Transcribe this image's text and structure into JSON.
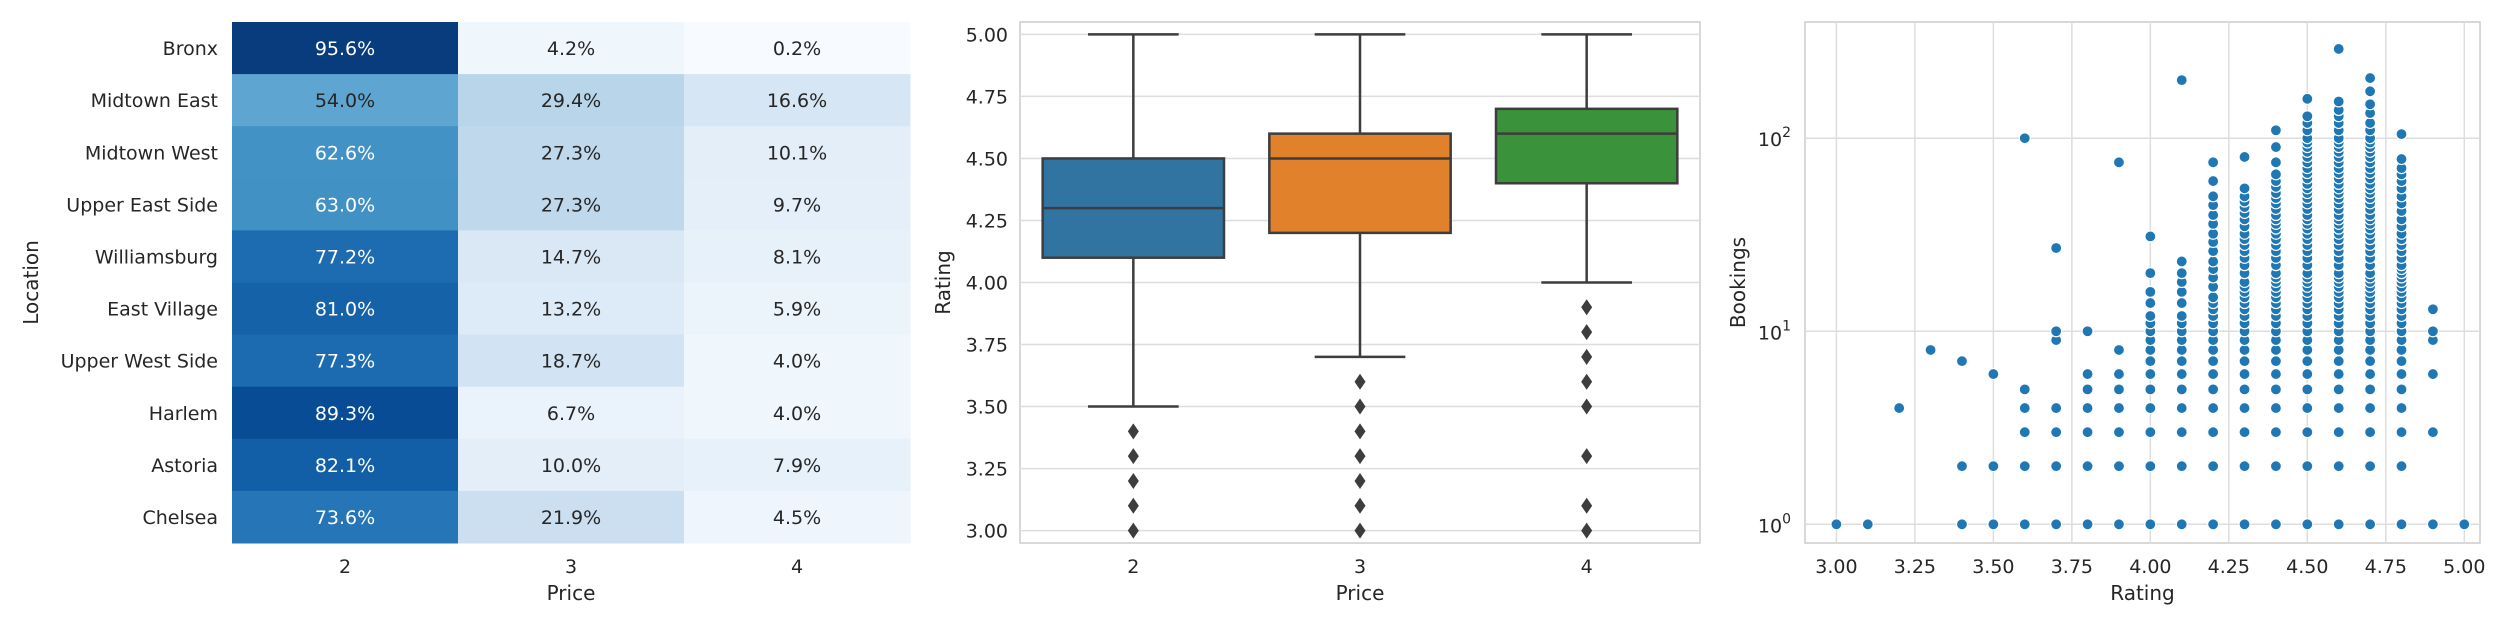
{
  "chart_data": [
    {
      "type": "heatmap",
      "xlabel": "Price",
      "ylabel": "Location",
      "columns": [
        "2",
        "3",
        "4"
      ],
      "rows": [
        "Bronx",
        "Midtown East",
        "Midtown West",
        "Upper East Side",
        "Williamsburg",
        "East Village",
        "Upper West Side",
        "Harlem",
        "Astoria",
        "Chelsea"
      ],
      "values": [
        [
          95.6,
          4.2,
          0.2
        ],
        [
          54.0,
          29.4,
          16.6
        ],
        [
          62.6,
          27.3,
          10.1
        ],
        [
          63.0,
          27.3,
          9.7
        ],
        [
          77.2,
          14.7,
          8.1
        ],
        [
          81.0,
          13.2,
          5.9
        ],
        [
          77.3,
          18.7,
          4.0
        ],
        [
          89.3,
          6.7,
          4.0
        ],
        [
          82.1,
          10.0,
          7.9
        ],
        [
          73.6,
          21.9,
          4.5
        ]
      ],
      "labels": [
        [
          "95.6%",
          "4.2%",
          "0.2%"
        ],
        [
          "54.0%",
          "29.4%",
          "16.6%"
        ],
        [
          "62.6%",
          "27.3%",
          "10.1%"
        ],
        [
          "63.0%",
          "27.3%",
          "9.7%"
        ],
        [
          "77.2%",
          "14.7%",
          "8.1%"
        ],
        [
          "81.0%",
          "13.2%",
          "5.9%"
        ],
        [
          "77.3%",
          "18.7%",
          "4.0%"
        ],
        [
          "89.3%",
          "6.7%",
          "4.0%"
        ],
        [
          "82.1%",
          "10.0%",
          "7.9%"
        ],
        [
          "73.6%",
          "21.9%",
          "4.5%"
        ]
      ],
      "colormap": "Blues",
      "vmin": 0,
      "vmax": 100,
      "colorbar": false
    },
    {
      "type": "box",
      "xlabel": "Price",
      "ylabel": "Rating",
      "ylim": [
        2.95,
        5.05
      ],
      "yticks": [
        "3.00",
        "3.25",
        "3.50",
        "3.75",
        "4.00",
        "4.25",
        "4.50",
        "4.75",
        "5.00"
      ],
      "grid": true,
      "boxes": [
        {
          "category": "2",
          "color": "#3274a1",
          "whisker_low": 3.5,
          "q1": 4.1,
          "median": 4.3,
          "q3": 4.5,
          "whisker_high": 5.0,
          "outliers": [
            3.0,
            3.1,
            3.2,
            3.3,
            3.4
          ]
        },
        {
          "category": "3",
          "color": "#e1812c",
          "whisker_low": 3.7,
          "q1": 4.2,
          "median": 4.5,
          "q3": 4.6,
          "whisker_high": 5.0,
          "outliers": [
            3.0,
            3.1,
            3.2,
            3.3,
            3.4,
            3.5,
            3.6
          ]
        },
        {
          "category": "4",
          "color": "#3a923a",
          "whisker_low": 4.0,
          "q1": 4.4,
          "median": 4.6,
          "q3": 4.7,
          "whisker_high": 5.0,
          "outliers": [
            3.0,
            3.1,
            3.3,
            3.5,
            3.6,
            3.7,
            3.8,
            3.9
          ]
        }
      ]
    },
    {
      "type": "scatter",
      "xlabel": "Rating",
      "ylabel": "Bookings",
      "xlim": [
        2.9,
        5.05
      ],
      "xticks": [
        "3.00",
        "3.25",
        "3.50",
        "3.75",
        "4.00",
        "4.25",
        "4.50",
        "4.75",
        "5.00"
      ],
      "yscale": "log",
      "ylim": [
        0.8,
        400
      ],
      "yticks": [
        {
          "value": 1,
          "base": "10",
          "exp": "0"
        },
        {
          "value": 10,
          "base": "10",
          "exp": "1"
        },
        {
          "value": 100,
          "base": "10",
          "exp": "2"
        }
      ],
      "grid": true,
      "color": "#1f77b4",
      "columns": [
        {
          "x": 3.0,
          "y": [
            1
          ]
        },
        {
          "x": 3.1,
          "y": [
            1
          ]
        },
        {
          "x": 3.2,
          "y": [
            4
          ]
        },
        {
          "x": 3.3,
          "y": [
            8
          ]
        },
        {
          "x": 3.4,
          "y": [
            1,
            2,
            7
          ]
        },
        {
          "x": 3.5,
          "y": [
            1,
            2,
            6
          ]
        },
        {
          "x": 3.6,
          "y": [
            1,
            2,
            3,
            4,
            5,
            100
          ]
        },
        {
          "x": 3.7,
          "y": [
            1,
            2,
            3,
            4,
            9,
            10,
            27
          ]
        },
        {
          "x": 3.8,
          "y": [
            1,
            2,
            3,
            4,
            5,
            6,
            10
          ]
        },
        {
          "x": 3.9,
          "y": [
            1,
            2,
            3,
            4,
            5,
            6,
            8,
            75
          ]
        },
        {
          "x": 4.0,
          "y": [
            1,
            2,
            3,
            4,
            5,
            6,
            7,
            8,
            9,
            10,
            11,
            12,
            14,
            16,
            20,
            31
          ]
        },
        {
          "x": 4.1,
          "y": [
            1,
            2,
            3,
            4,
            5,
            6,
            7,
            8,
            9,
            10,
            11,
            12,
            14,
            16,
            18,
            20,
            23,
            200
          ]
        },
        {
          "x": 4.2,
          "y": [
            1,
            2,
            3,
            4,
            5,
            6,
            7,
            8,
            9,
            10,
            11,
            12,
            13,
            14,
            15,
            17,
            19,
            21,
            23,
            26,
            29,
            32,
            36,
            40,
            45,
            50,
            60,
            75
          ]
        },
        {
          "x": 4.3,
          "y": [
            1,
            2,
            3,
            4,
            5,
            6,
            7,
            8,
            9,
            10,
            11,
            12,
            13,
            14,
            15,
            16,
            17,
            18,
            20,
            22,
            24,
            26,
            28,
            30,
            32,
            35,
            38,
            41,
            44,
            47,
            50,
            55,
            80
          ]
        },
        {
          "x": 4.4,
          "y": [
            1,
            2,
            3,
            4,
            5,
            6,
            7,
            8,
            9,
            10,
            11,
            12,
            13,
            14,
            15,
            16,
            17,
            18,
            19,
            20,
            22,
            24,
            26,
            28,
            30,
            32,
            34,
            36,
            38,
            40,
            43,
            46,
            49,
            52,
            56,
            60,
            65,
            75,
            90,
            110
          ]
        },
        {
          "x": 4.5,
          "y": [
            1,
            2,
            3,
            4,
            5,
            6,
            7,
            8,
            9,
            10,
            11,
            12,
            13,
            14,
            15,
            16,
            17,
            18,
            19,
            20,
            22,
            24,
            26,
            28,
            30,
            32,
            34,
            36,
            38,
            40,
            43,
            46,
            49,
            52,
            55,
            58,
            62,
            66,
            70,
            75,
            80,
            85,
            90,
            95,
            100,
            110,
            120,
            130,
            160
          ]
        },
        {
          "x": 4.6,
          "y": [
            1,
            2,
            3,
            4,
            5,
            6,
            7,
            8,
            9,
            10,
            11,
            12,
            13,
            14,
            15,
            16,
            17,
            18,
            19,
            20,
            22,
            24,
            26,
            28,
            30,
            32,
            34,
            36,
            38,
            40,
            43,
            46,
            49,
            52,
            55,
            58,
            62,
            66,
            70,
            75,
            80,
            85,
            90,
            95,
            100,
            110,
            120,
            130,
            140,
            155,
            290
          ]
        },
        {
          "x": 4.7,
          "y": [
            1,
            2,
            3,
            4,
            5,
            6,
            7,
            8,
            9,
            10,
            11,
            12,
            13,
            14,
            15,
            16,
            17,
            18,
            19,
            20,
            22,
            24,
            26,
            28,
            30,
            32,
            34,
            36,
            38,
            40,
            43,
            46,
            49,
            52,
            55,
            58,
            62,
            66,
            70,
            75,
            80,
            85,
            90,
            95,
            100,
            110,
            120,
            135,
            150,
            175,
            205
          ]
        },
        {
          "x": 4.8,
          "y": [
            1,
            2,
            3,
            4,
            5,
            6,
            7,
            8,
            9,
            10,
            11,
            12,
            13,
            14,
            15,
            16,
            17,
            18,
            19,
            20,
            21,
            22,
            24,
            26,
            28,
            30,
            32,
            35,
            38,
            42,
            46,
            50,
            55,
            60,
            65,
            70,
            78,
            105
          ]
        },
        {
          "x": 4.9,
          "y": [
            1,
            3,
            6,
            9,
            10,
            13
          ]
        },
        {
          "x": 5.0,
          "y": [
            1
          ]
        }
      ]
    }
  ]
}
